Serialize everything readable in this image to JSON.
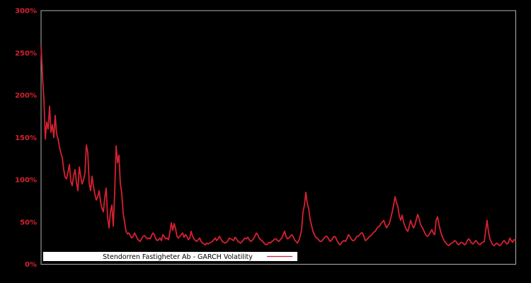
{
  "window": {
    "background_color": "#000000"
  },
  "chart_data": {
    "type": "line",
    "title": "",
    "xlabel": "",
    "ylabel": "",
    "grid": false,
    "ylim": [
      0,
      300
    ],
    "yticks": [
      "0%",
      "50%",
      "100%",
      "150%",
      "200%",
      "250%",
      "300%"
    ],
    "ytick_values": [
      0,
      50,
      100,
      150,
      200,
      250,
      300
    ],
    "xticks": [],
    "plot": {
      "frame_color": "#b0b0b0",
      "tick_label_color": "#d62130",
      "background": "#000000"
    },
    "legend": {
      "position": "lower-left",
      "label": "Stendorren Fastigheter Ab - GARCH Volatility",
      "background": "#ffffff",
      "text_color": "#000000",
      "line_color": "#cc2233"
    },
    "series": [
      {
        "name": "Stendorren Fastigheter Ab - GARCH Volatility",
        "color": "#d62130",
        "unit": "%",
        "values": [
          258,
          222,
          196,
          148,
          168,
          160,
          187,
          156,
          165,
          150,
          176,
          154,
          148,
          139,
          131,
          126,
          112,
          103,
          101,
          109,
          118,
          98,
          93,
          105,
          112,
          97,
          87,
          115,
          104,
          95,
          100,
          108,
          141,
          132,
          96,
          87,
          104,
          92,
          83,
          76,
          80,
          87,
          74,
          66,
          62,
          79,
          90,
          55,
          43,
          62,
          70,
          45,
          85,
          140,
          120,
          129,
          95,
          84,
          60,
          50,
          39,
          36,
          37,
          34,
          31,
          33,
          37,
          34,
          30,
          28,
          27,
          30,
          33,
          34,
          32,
          30,
          31,
          30,
          34,
          37,
          35,
          30,
          28,
          29,
          31,
          28,
          35,
          33,
          30,
          31,
          29,
          38,
          49,
          40,
          48,
          42,
          33,
          31,
          33,
          35,
          37,
          32,
          35,
          33,
          29,
          31,
          39,
          33,
          30,
          28,
          27,
          29,
          31,
          27,
          25,
          24,
          23,
          25,
          24,
          25,
          26,
          27,
          29,
          31,
          28,
          30,
          33,
          30,
          27,
          26,
          25,
          26,
          28,
          31,
          30,
          29,
          28,
          32,
          30,
          27,
          26,
          25,
          27,
          29,
          31,
          30,
          32,
          29,
          27,
          28,
          30,
          33,
          37,
          35,
          31,
          29,
          28,
          26,
          24,
          23,
          24,
          26,
          25,
          27,
          28,
          30,
          30,
          28,
          27,
          29,
          31,
          35,
          39,
          33,
          30,
          31,
          33,
          35,
          33,
          29,
          27,
          25,
          28,
          33,
          41,
          62,
          70,
          85,
          72,
          66,
          53,
          46,
          39,
          35,
          32,
          31,
          29,
          27,
          27,
          29,
          31,
          33,
          33,
          30,
          27,
          28,
          31,
          33,
          32,
          28,
          25,
          23,
          25,
          27,
          28,
          27,
          30,
          35,
          33,
          30,
          28,
          28,
          30,
          33,
          33,
          35,
          37,
          37,
          33,
          28,
          29,
          31,
          33,
          34,
          36,
          38,
          39,
          42,
          44,
          45,
          48,
          50,
          52,
          47,
          43,
          46,
          48,
          55,
          62,
          70,
          80,
          73,
          68,
          57,
          52,
          58,
          50,
          45,
          41,
          39,
          45,
          52,
          47,
          43,
          46,
          53,
          59,
          54,
          47,
          44,
          41,
          37,
          34,
          33,
          35,
          38,
          41,
          37,
          35,
          52,
          56,
          47,
          40,
          34,
          30,
          27,
          25,
          23,
          22,
          24,
          25,
          26,
          28,
          27,
          24,
          23,
          25,
          26,
          25,
          23,
          24,
          28,
          30,
          28,
          25,
          24,
          26,
          28,
          26,
          24,
          23,
          25,
          26,
          27,
          40,
          52,
          38,
          30,
          26,
          23,
          22,
          24,
          25,
          23,
          22,
          24,
          26,
          28,
          26,
          24,
          25,
          31,
          28,
          26,
          29,
          28
        ]
      }
    ]
  }
}
